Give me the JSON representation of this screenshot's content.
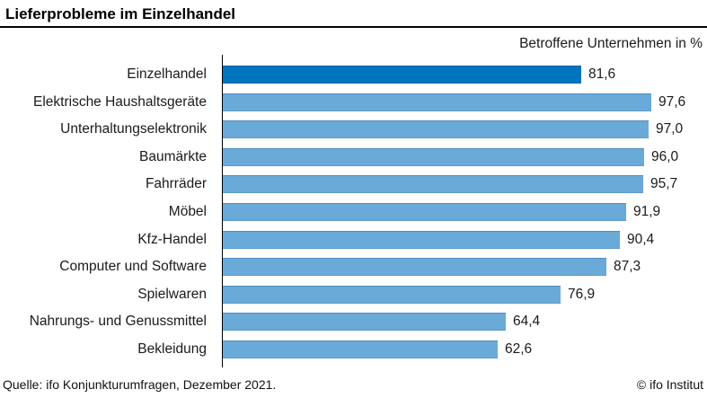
{
  "header": {
    "title": "Lieferprobleme im Einzelhandel",
    "subtitle": "Betroffene Unternehmen in %"
  },
  "footer": {
    "source": "Quelle: ifo Konjunkturumfragen, Dezember 2021.",
    "copyright": "© ifo Institut"
  },
  "chart_data": {
    "type": "bar",
    "orientation": "horizontal",
    "title": "Lieferprobleme im Einzelhandel",
    "axis_label": "Betroffene Unternehmen in %",
    "categories": [
      "Einzelhandel",
      "Elektrische Haushaltsgeräte",
      "Unterhaltungselektronik",
      "Baumärkte",
      "Fahrräder",
      "Möbel",
      "Kfz-Handel",
      "Computer und Software",
      "Spielwaren",
      "Nahrungs- und Genussmittel",
      "Bekleidung"
    ],
    "values": [
      81.6,
      97.6,
      97.0,
      96.0,
      95.7,
      91.9,
      90.4,
      87.3,
      76.9,
      64.4,
      62.6
    ],
    "value_labels": [
      "81,6",
      "97,6",
      "97,0",
      "96,0",
      "95,7",
      "91,9",
      "90,4",
      "87,3",
      "76,9",
      "64,4",
      "62,6"
    ],
    "highlight_index": 0,
    "xlim": [
      0,
      100
    ],
    "grid": false,
    "legend": "none",
    "value_labels_position": "end-of-bar",
    "colors": {
      "highlight": "#0074bd",
      "normal": "#69aad8",
      "axis": "#000000",
      "text": "#1a1a1a"
    },
    "source": "Quelle: ifo Konjunkturumfragen, Dezember 2021.",
    "copyright": "© ifo Institut"
  }
}
